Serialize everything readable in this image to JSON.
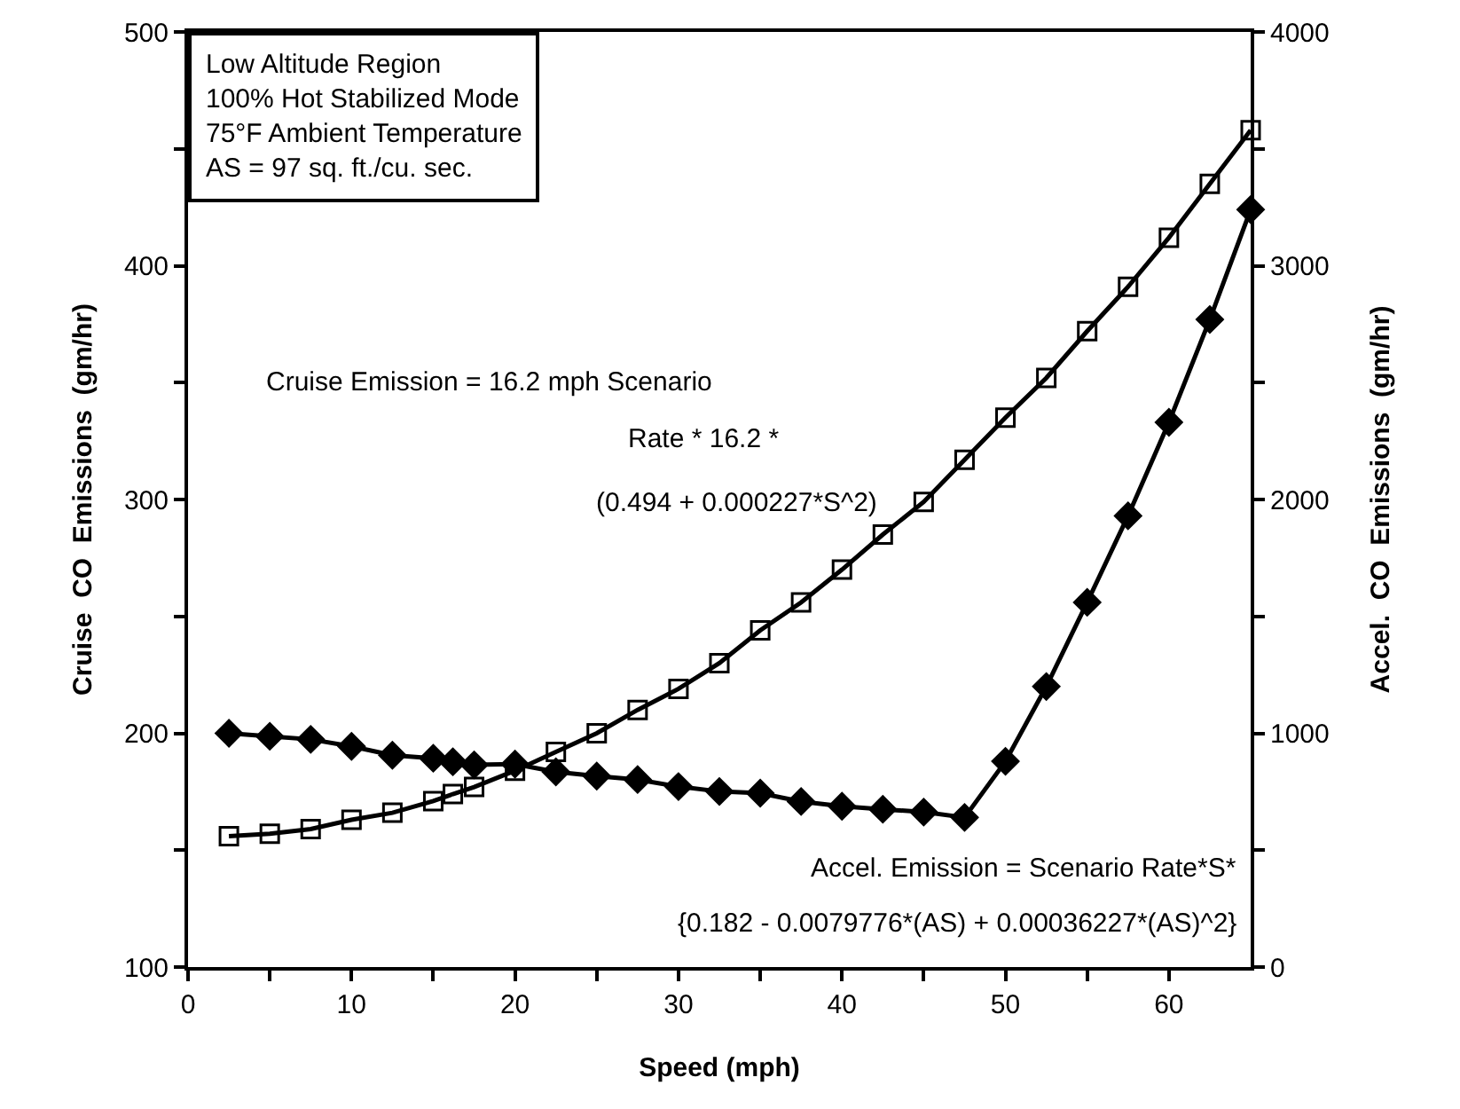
{
  "chart_data": {
    "type": "line",
    "xlabel": "Speed (mph)",
    "ylabel": "Cruise  CO  Emissions  (gm/hr)",
    "y2label": "Accel.  CO  Emissions  (gm/hr)",
    "x": [
      2.5,
      5,
      7.5,
      10,
      12.5,
      15,
      16.2,
      17.5,
      20,
      22.5,
      25,
      27.5,
      30,
      32.5,
      35,
      37.5,
      40,
      42.5,
      45,
      47.5,
      50,
      52.5,
      55,
      57.5,
      60,
      62.5,
      65
    ],
    "series": [
      {
        "color": "#000000",
        "marker": "square",
        "values": [
          156,
          157,
          159,
          163,
          166,
          171,
          174,
          177,
          184,
          192,
          200,
          210,
          219,
          230,
          244,
          256,
          270,
          285,
          299,
          317,
          335,
          352,
          372,
          391,
          412,
          435,
          458
        ]
      },
      {
        "color": "#000000",
        "marker": "diamond",
        "axis": "y2",
        "values": [
          1000,
          987,
          974,
          944,
          906,
          893,
          878,
          865,
          868,
          835,
          817,
          802,
          772,
          751,
          744,
          708,
          688,
          675,
          663,
          640,
          880,
          1200,
          1560,
          1930,
          2330,
          2770,
          3240
        ]
      }
    ],
    "xlim": [
      0,
      65
    ],
    "xticks": [
      0,
      {
        "value": 5,
        "label": null
      },
      10,
      {
        "value": 15,
        "label": null
      },
      20,
      {
        "value": 25,
        "label": null
      },
      30,
      {
        "value": 35,
        "label": null
      },
      40,
      {
        "value": 45,
        "label": null
      },
      50,
      {
        "value": 55,
        "label": null
      },
      60
    ],
    "ylim": [
      100,
      500
    ],
    "yticks": [
      100,
      {
        "value": 150,
        "label": null
      },
      200,
      {
        "value": 250,
        "label": null
      },
      300,
      {
        "value": 350,
        "label": null
      },
      400,
      {
        "value": 450,
        "label": null
      },
      500
    ],
    "y2lim": [
      0,
      4000
    ],
    "y2ticks": [
      0,
      {
        "value": 500,
        "label": null
      },
      1000,
      {
        "value": 1500,
        "label": null
      },
      2000,
      {
        "value": 2500,
        "label": null
      },
      3000,
      {
        "value": 3500,
        "label": null
      },
      4000
    ],
    "line_style": "solid",
    "annotations": [
      "Low Altitude Region",
      "100% Hot Stabilized Mode",
      "75°F Ambient Temperature",
      "AS = 97 sq. ft./cu. sec.",
      "Cruise Emission = 16.2 mph Scenario",
      "Rate * 16.2 *",
      "(0.494 + 0.000227*S^2)",
      "Accel. Emission = Scenario Rate*S*",
      "{0.182 - 0.0079776*(AS) + 0.00036227*(AS)^2}"
    ]
  }
}
